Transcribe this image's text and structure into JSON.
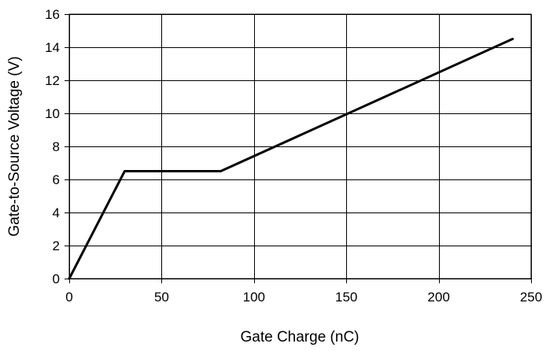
{
  "chart_data": {
    "type": "line",
    "title": "",
    "xlabel": "Gate Charge (nC)",
    "ylabel": "Gate-to-Source Voltage (V)",
    "xlim": [
      0,
      250
    ],
    "ylim": [
      0,
      16
    ],
    "x_ticks": [
      0,
      50,
      100,
      150,
      200,
      250
    ],
    "y_ticks": [
      0,
      2,
      4,
      6,
      8,
      10,
      12,
      14,
      16
    ],
    "x_tick_labels": [
      "0",
      "50",
      "100",
      "150",
      "200",
      "250"
    ],
    "y_tick_labels": [
      "0",
      "2",
      "4",
      "6",
      "8",
      "10",
      "12",
      "14",
      "16"
    ],
    "grid": true,
    "legend": "none",
    "series": [
      {
        "color": "#000000",
        "x": [
          0,
          30,
          82,
          240
        ],
        "y": [
          0,
          6.5,
          6.5,
          14.5
        ]
      }
    ]
  }
}
